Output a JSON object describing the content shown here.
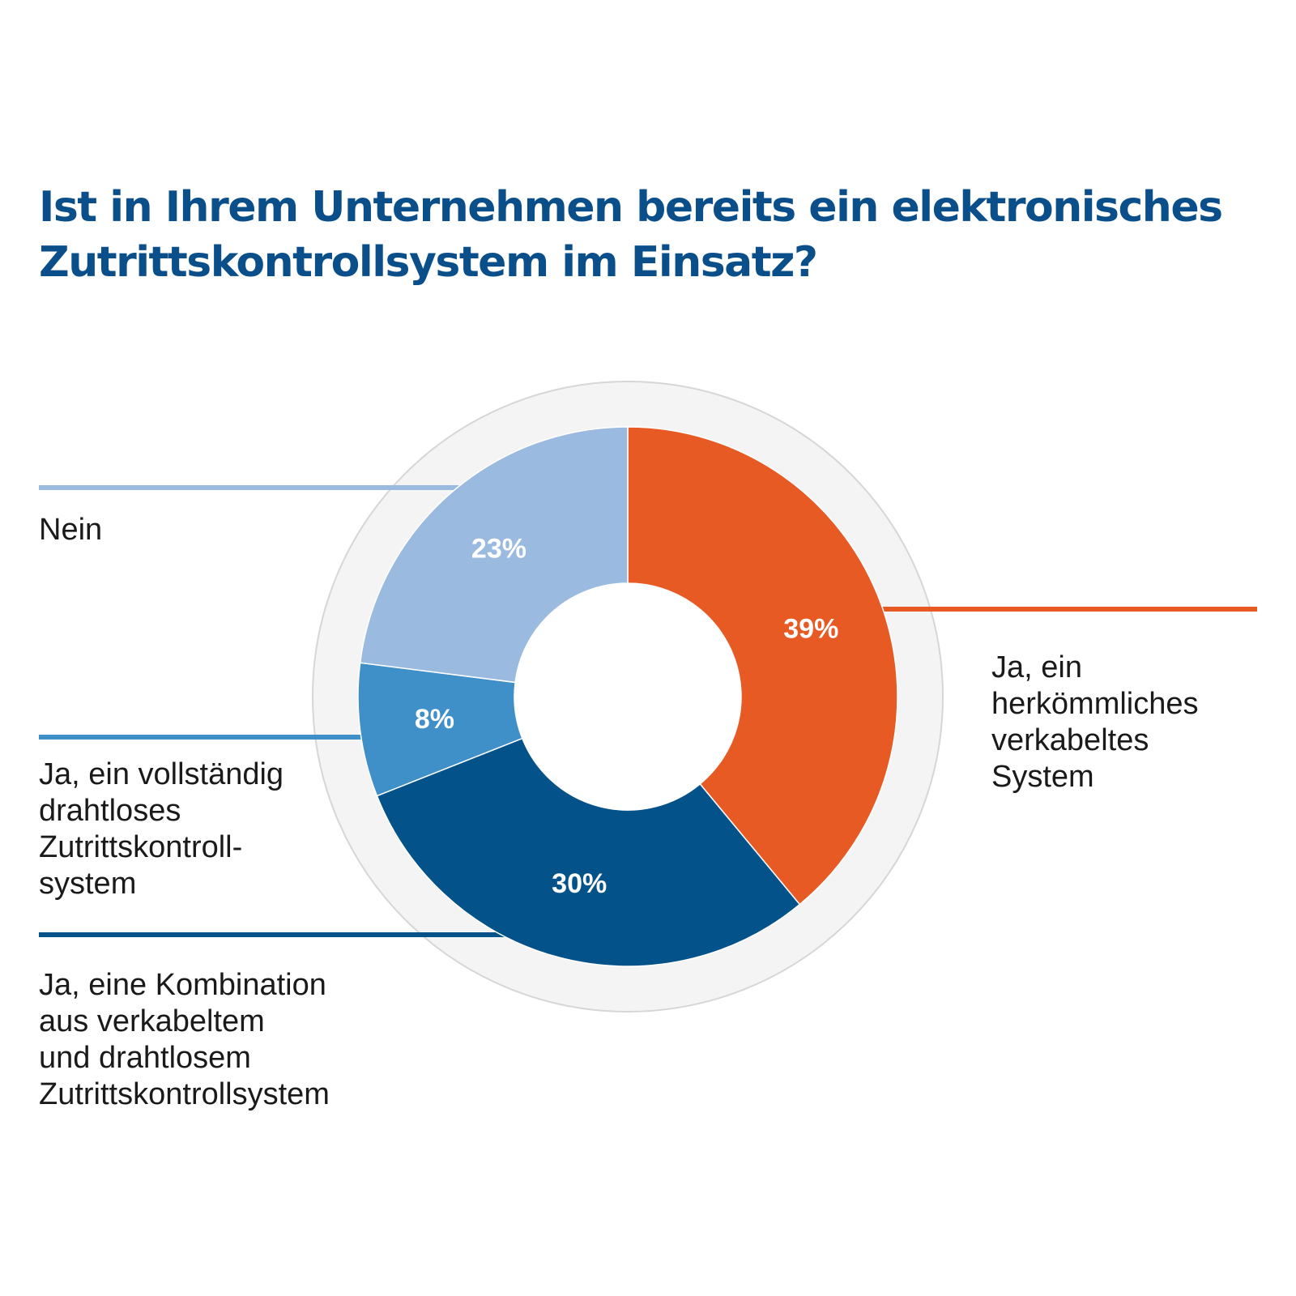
{
  "chart_data": {
    "type": "pie",
    "variant": "donut",
    "title": "Ist in Ihrem Unternehmen bereits ein elektronisches Zutrittskontrollsystem im Einsatz?",
    "title_lines": [
      "Ist in Ihrem Unternehmen bereits ein elektronisches",
      "Zutrittskontrollsystem im Einsatz?"
    ],
    "start": "top",
    "direction": "clockwise",
    "slices": [
      {
        "label": "Ja, ein herkömmliches verkabeltes System",
        "label_lines": "Ja, ein\nherkömmliches\nverkabeltes\nSystem",
        "value": 39,
        "display": "39%",
        "color": "#e85a24"
      },
      {
        "label": "Ja, eine Kombination aus verkabeltem und drahtlosem Zutrittskontrollsystem",
        "label_lines": "Ja, eine Kombination\naus verkabeltem\nund drahtlosem\nZutrittskontrollsystem",
        "value": 30,
        "display": "30%",
        "color": "#04528a"
      },
      {
        "label": "Ja, ein vollständig drahtloses Zutrittskontrollsystem",
        "label_lines": "Ja, ein vollständig\ndrahtloses\nZutrittskontroll-\nsystem",
        "value": 8,
        "display": "8%",
        "color": "#3f8fc8"
      },
      {
        "label": "Nein",
        "label_lines": "Nein",
        "value": 23,
        "display": "23%",
        "color": "#9bbadf"
      }
    ],
    "unit": "%",
    "ring_color": "#f4f4f4",
    "ring_stroke": "#d6d6d6"
  }
}
